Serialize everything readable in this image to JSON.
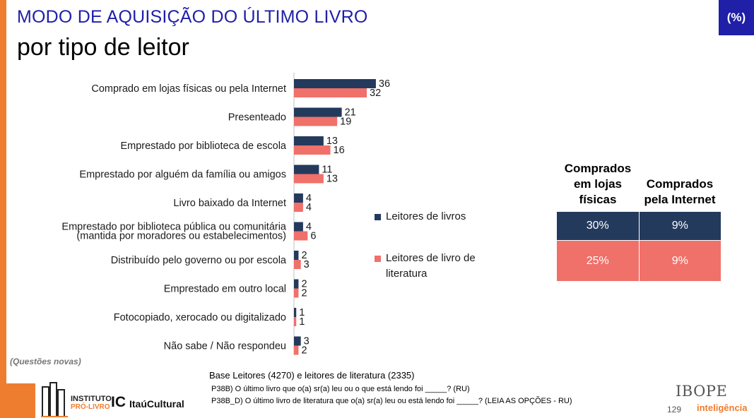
{
  "header": {
    "title": "MODO DE AQUISIÇÃO DO ÚLTIMO LIVRO",
    "subtitle": "por tipo de leitor",
    "unit_badge": "(%)"
  },
  "colors": {
    "series_readers": "#243a5c",
    "series_literature": "#f0706a",
    "accent_orange": "#ee7d30",
    "title_blue": "#1f1fa8"
  },
  "chart_data": {
    "type": "bar",
    "orientation": "horizontal",
    "categories": [
      [
        "Comprado em lojas físicas ou pela Internet"
      ],
      [
        "Presenteado"
      ],
      [
        "Emprestado por biblioteca de escola"
      ],
      [
        "Emprestado por alguém da família ou amigos"
      ],
      [
        "Livro baixado da Internet"
      ],
      [
        "Emprestado por biblioteca pública ou comunitária",
        "(mantida por moradores ou estabelecimentos)"
      ],
      [
        "Distribuído pelo governo ou por escola"
      ],
      [
        "Emprestado em outro local"
      ],
      [
        "Fotocopiado, xerocado ou digitalizado"
      ],
      [
        "Não sabe / Não respondeu"
      ]
    ],
    "series": [
      {
        "name": "Leitores de livros",
        "values": [
          36,
          21,
          13,
          11,
          4,
          4,
          2,
          2,
          1,
          3
        ]
      },
      {
        "name": "Leitores de livro de literatura",
        "values": [
          32,
          19,
          16,
          13,
          4,
          6,
          3,
          2,
          1,
          2
        ]
      }
    ],
    "legend_position": "right",
    "grid": false
  },
  "bought_table": {
    "headers": [
      "Comprados em lojas físicas",
      "Comprados pela Internet"
    ],
    "rows": [
      {
        "series": "Leitores de livros",
        "values": [
          "30%",
          "9%"
        ]
      },
      {
        "series": "Leitores de livro de literatura",
        "values": [
          "25%",
          "9%"
        ]
      }
    ]
  },
  "footer": {
    "note": "(Questões novas)",
    "base": "Base Leitores (4270) e leitores de literatura (2335)",
    "questions": [
      "P38B) O último livro que o(a) sr(a) leu ou o que está lendo foi _____? (RU)",
      "P38B_D) O último livro de literatura que o(a) sr(a) leu ou está lendo foi _____? (LEIA AS OPÇÕES - RU)"
    ],
    "page_number": "129",
    "logos": {
      "instituto_line1": "INSTITUTO",
      "instituto_line2": "PRÓ-LIVRO",
      "ic_mark": "IC",
      "itau": "ItaúCultural",
      "ibope": "IBOPE",
      "ibope_sub": "inteligência"
    }
  }
}
